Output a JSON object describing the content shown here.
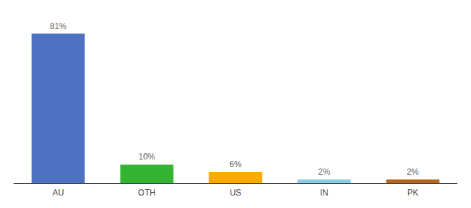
{
  "chart_data": {
    "type": "bar",
    "categories": [
      "AU",
      "OTH",
      "US",
      "IN",
      "PK"
    ],
    "values": [
      81,
      10,
      6,
      2,
      2
    ],
    "value_labels": [
      "81%",
      "10%",
      "6%",
      "2%",
      "2%"
    ],
    "colors": [
      "#4d72c4",
      "#33b533",
      "#ffaa00",
      "#87ceeb",
      "#b5651d"
    ],
    "ylim": [
      0,
      88
    ],
    "data_labels": true,
    "tick_labels": "x",
    "grid": false
  }
}
